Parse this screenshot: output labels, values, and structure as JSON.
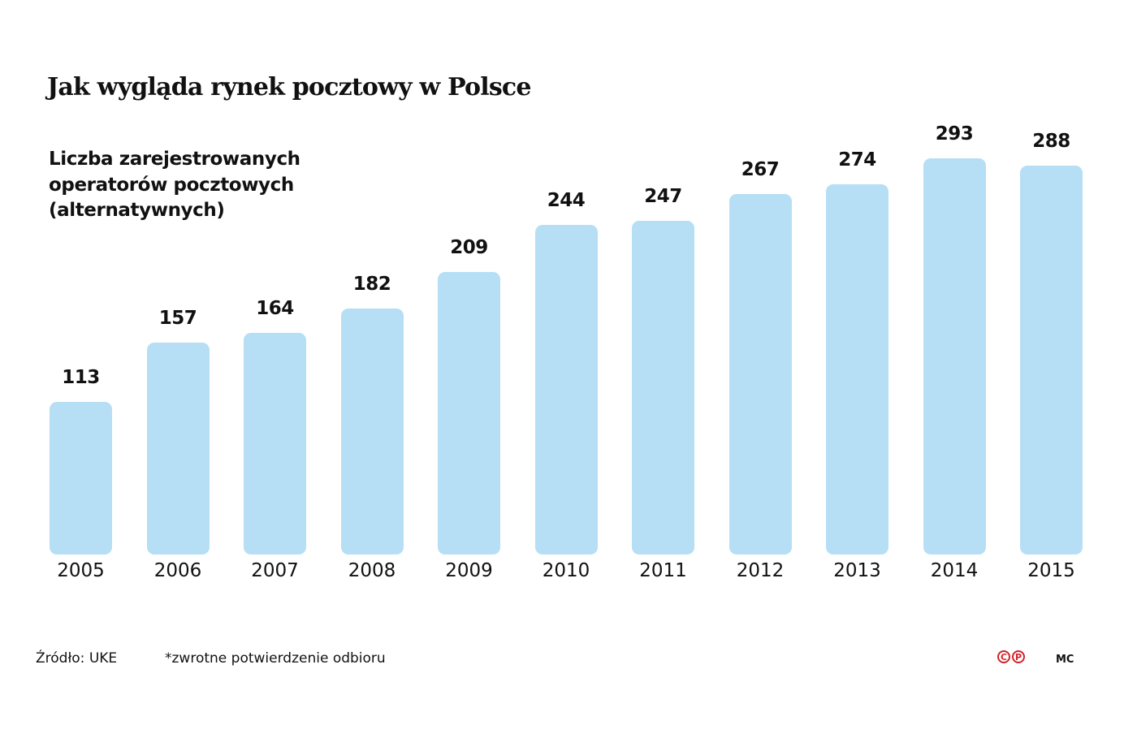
{
  "title": "Jak wygląda rynek pocztowy w Polsce",
  "subtitle": "Liczba zarejestrowanych\noperatorów pocztowych\n(alternatywnych)",
  "footer": {
    "source": "Źródło: UKE",
    "note": "*zwrotne potwierdzenie odbioru",
    "logo_c": "C",
    "logo_p": "P",
    "author": "MC"
  },
  "colors": {
    "bar": "#b6dff5",
    "logo": "#d2232a",
    "text": "#111111"
  },
  "chart_data": {
    "type": "bar",
    "title": "Jak wygląda rynek pocztowy w Polsce",
    "subtitle": "Liczba zarejestrowanych operatorów pocztowych (alternatywnych)",
    "xlabel": "",
    "ylabel": "",
    "categories": [
      "2005",
      "2006",
      "2007",
      "2008",
      "2009",
      "2010",
      "2011",
      "2012",
      "2013",
      "2014",
      "2015"
    ],
    "values": [
      113,
      157,
      164,
      182,
      209,
      244,
      247,
      267,
      274,
      293,
      288
    ],
    "data_labels": true,
    "grid": false,
    "legend": null,
    "ylim": [
      0,
      300
    ]
  }
}
